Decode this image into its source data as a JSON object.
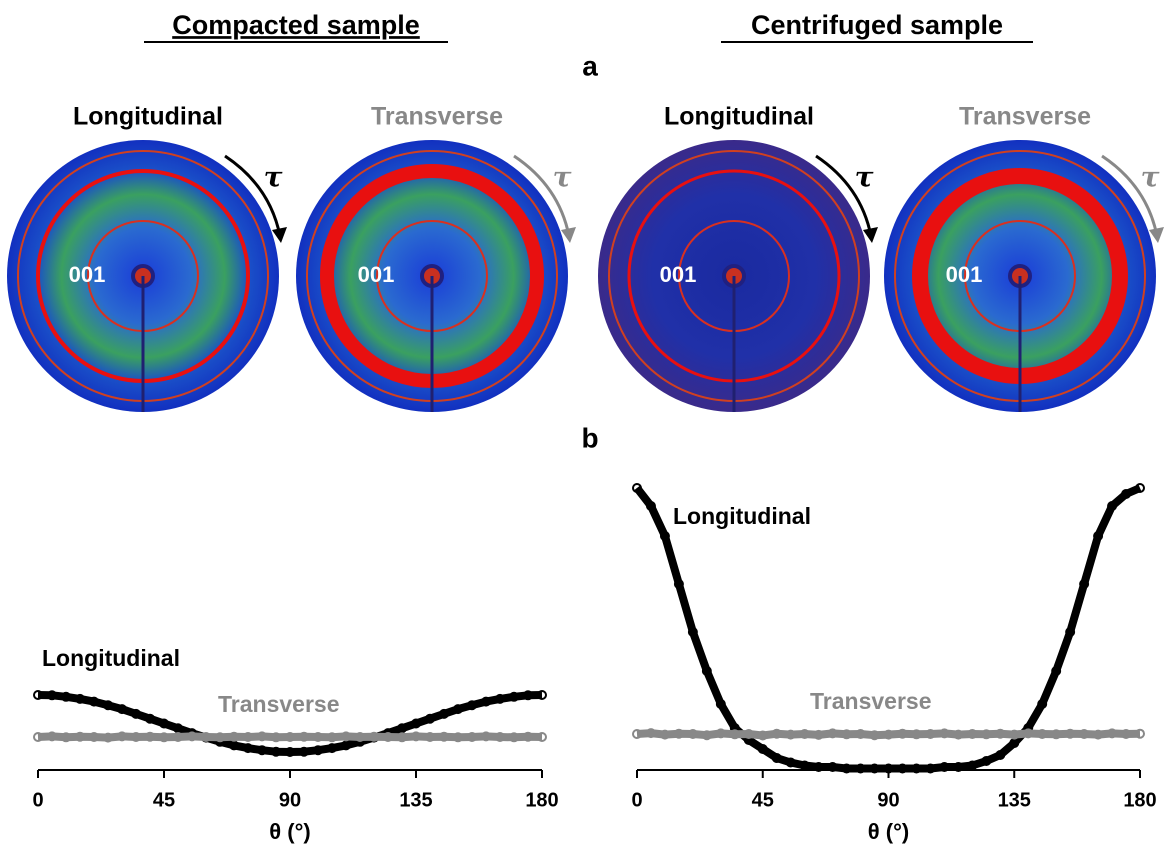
{
  "header": {
    "left_title": "Compacted sample",
    "right_title": "Centrifuged sample",
    "panel_a": "a",
    "panel_b": "b"
  },
  "images": [
    {
      "label": "Longitudinal",
      "ring_label": "001",
      "symbol": "τ"
    },
    {
      "label": "Transverse",
      "ring_label": "001",
      "symbol": "τ"
    },
    {
      "label": "Longitudinal",
      "ring_label": "001",
      "symbol": "τ"
    },
    {
      "label": "Transverse",
      "ring_label": "001",
      "symbol": "τ"
    }
  ],
  "chart_data": [
    {
      "type": "scatter",
      "xlabel": "θ (°)",
      "x": [
        0,
        5,
        10,
        15,
        20,
        25,
        30,
        35,
        40,
        45,
        50,
        55,
        60,
        65,
        70,
        75,
        80,
        85,
        90,
        95,
        100,
        105,
        110,
        115,
        120,
        125,
        130,
        135,
        140,
        145,
        150,
        155,
        160,
        165,
        170,
        175,
        180
      ],
      "xlim": [
        0,
        180
      ],
      "xticks": [
        0,
        45,
        90,
        135,
        180
      ],
      "ylim": [
        0,
        100
      ],
      "series": [
        {
          "name": "Longitudinal",
          "color": "#000000",
          "values": [
            25,
            24.9,
            24.4,
            23.7,
            22.8,
            21.6,
            20.3,
            18.7,
            17.1,
            15.5,
            13.9,
            12.3,
            10.8,
            9.4,
            8.2,
            7.3,
            6.6,
            6.1,
            6,
            6.1,
            6.6,
            7.3,
            8.2,
            9.4,
            10.8,
            12.3,
            13.9,
            15.5,
            17.1,
            18.7,
            20.3,
            21.6,
            22.8,
            23.7,
            24.4,
            24.9,
            25
          ]
        },
        {
          "name": "Transverse",
          "color": "#888888",
          "values": [
            11,
            11.2,
            10.9,
            11.1,
            11,
            10.8,
            11.2,
            11,
            11.1,
            10.9,
            11,
            11.2,
            11,
            10.9,
            11.1,
            11,
            11.2,
            10.9,
            11,
            11.1,
            11,
            10.9,
            11.2,
            11,
            11.1,
            11,
            10.9,
            11.2,
            11,
            11.1,
            10.9,
            11,
            11.2,
            11,
            10.9,
            11.1,
            11
          ]
        }
      ]
    },
    {
      "type": "scatter",
      "xlabel": "θ (°)",
      "x": [
        0,
        5,
        10,
        15,
        20,
        25,
        30,
        35,
        40,
        45,
        50,
        55,
        60,
        65,
        70,
        75,
        80,
        85,
        90,
        95,
        100,
        105,
        110,
        115,
        120,
        125,
        130,
        135,
        140,
        145,
        150,
        155,
        160,
        165,
        170,
        175,
        180
      ],
      "xlim": [
        0,
        180
      ],
      "xticks": [
        0,
        45,
        90,
        135,
        180
      ],
      "ylim": [
        0,
        100
      ],
      "series": [
        {
          "name": "Longitudinal",
          "color": "#000000",
          "values": [
            94,
            88,
            78,
            62,
            46,
            33,
            22,
            14,
            10,
            7,
            4,
            2.5,
            1.5,
            1,
            1,
            0.5,
            0.5,
            0.5,
            0.5,
            0.5,
            0.5,
            0.5,
            1,
            1,
            1.5,
            3,
            5,
            9,
            14,
            22,
            33,
            46,
            62,
            78,
            88,
            92,
            94
          ]
        },
        {
          "name": "Transverse",
          "color": "#888888",
          "values": [
            12,
            12.3,
            11.8,
            12.1,
            12,
            11.6,
            12.2,
            11.9,
            12,
            11.5,
            12.1,
            11.8,
            12,
            11.7,
            12.2,
            11.9,
            12,
            11.6,
            11.8,
            12.1,
            11.9,
            12,
            12.2,
            11.8,
            12,
            11.9,
            12.1,
            11.8,
            12.2,
            12,
            11.9,
            12.1,
            12,
            11.8,
            12.2,
            12,
            12.1
          ]
        }
      ]
    }
  ]
}
